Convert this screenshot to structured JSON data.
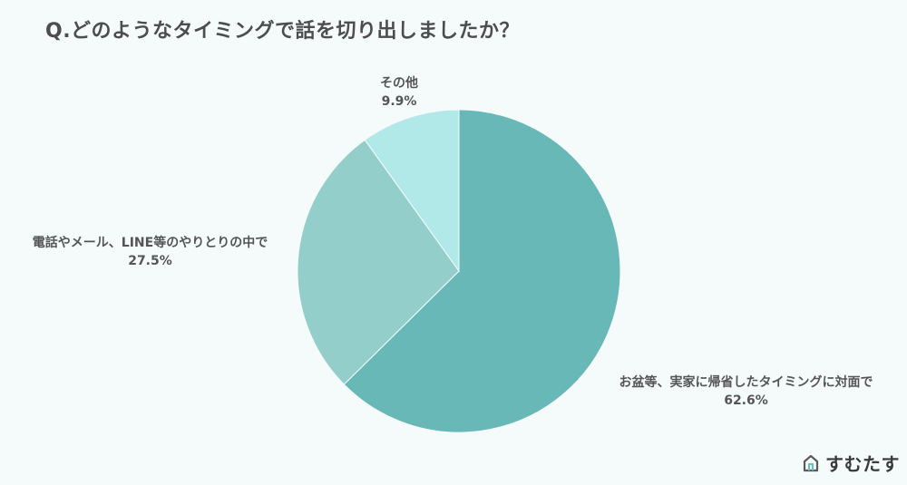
{
  "chart_data": {
    "type": "pie",
    "title": "Q.どのようなタイミングで話を切り出しましたか？",
    "start_angle_deg": 0,
    "direction": "clockwise",
    "slices": [
      {
        "label": "お盆等、実家に帰省したタイミングに対面で",
        "value": 62.6,
        "value_label": "62.6%",
        "color": "#67b8b6"
      },
      {
        "label": "電話やメール、LINE等のやりとりの中で",
        "value": 27.5,
        "value_label": "27.5%",
        "color": "#94ceca"
      },
      {
        "label": "その他",
        "value": 9.9,
        "value_label": "9.9%",
        "color": "#b1e8e8"
      }
    ]
  },
  "brand": {
    "name": "すむたす"
  }
}
